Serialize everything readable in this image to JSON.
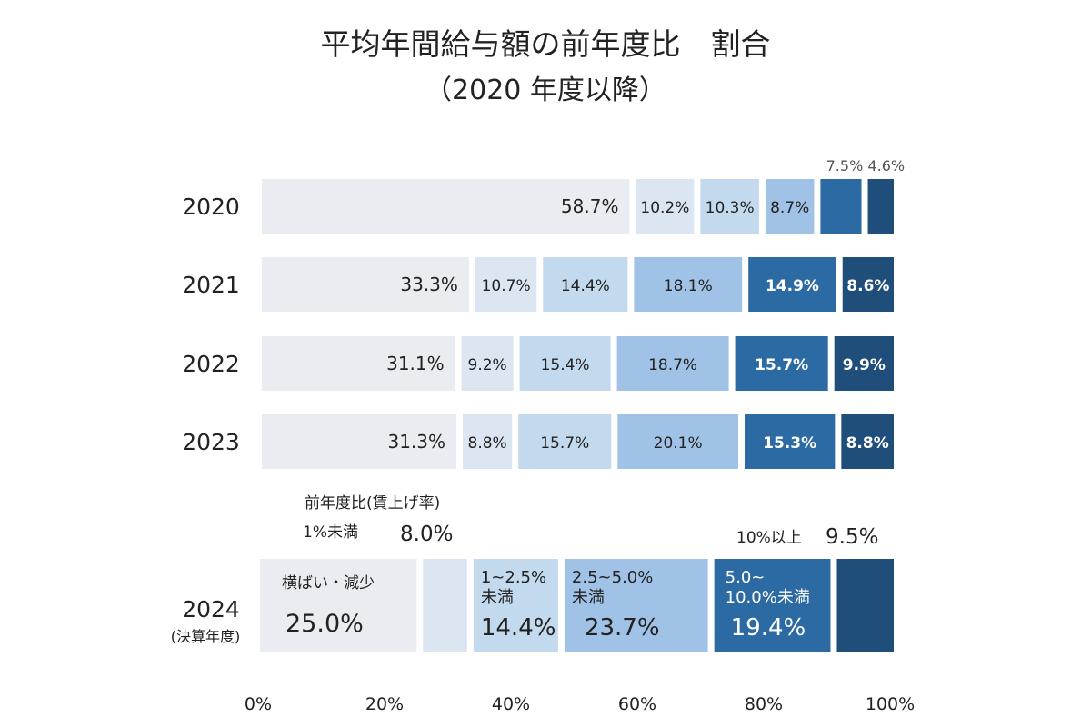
{
  "chart_data": {
    "type": "bar",
    "orientation": "horizontal-stacked-100",
    "title": "平均年間給与額の前年度比　割合",
    "subtitle": "（2020 年度以降）",
    "categories": [
      "2020",
      "2021",
      "2022",
      "2023",
      "2024"
    ],
    "category_sublabel_2024": "(決算年度)",
    "legend_header": "前年度比(賃上げ率)",
    "series": [
      {
        "name": "横ばい・減少",
        "values": [
          58.7,
          33.3,
          31.1,
          31.3,
          25.0
        ],
        "color": "#e9ecf0"
      },
      {
        "name": "1%未満",
        "values": [
          10.2,
          10.7,
          9.2,
          8.8,
          8.0
        ],
        "color": "#dce6f3"
      },
      {
        "name": "1~2.5%未満",
        "values": [
          10.3,
          14.4,
          15.4,
          15.7,
          14.4
        ],
        "color": "#c3d9ee"
      },
      {
        "name": "2.5~5.0%未満",
        "values": [
          8.7,
          18.1,
          18.7,
          20.1,
          23.7
        ],
        "color": "#9fc2e6"
      },
      {
        "name": "5.0~10.0%未満",
        "values": [
          7.5,
          14.9,
          15.7,
          15.3,
          19.4
        ],
        "color": "#2c6aa3"
      },
      {
        "name": "10%以上",
        "values": [
          4.6,
          8.6,
          9.9,
          8.8,
          9.5
        ],
        "color": "#1f4e7a"
      }
    ],
    "series_label_lines": [
      [
        "横ばい・減少"
      ],
      [
        "1%未満"
      ],
      [
        "1~2.5%",
        "未満"
      ],
      [
        "2.5~5.0%",
        "未満"
      ],
      [
        "5.0~",
        "10.0%未満"
      ],
      [
        "10%以上"
      ]
    ],
    "xlim": [
      0,
      100
    ],
    "x_ticks": [
      "0%",
      "20%",
      "40%",
      "60%",
      "80%",
      "100%"
    ],
    "grid": false
  }
}
